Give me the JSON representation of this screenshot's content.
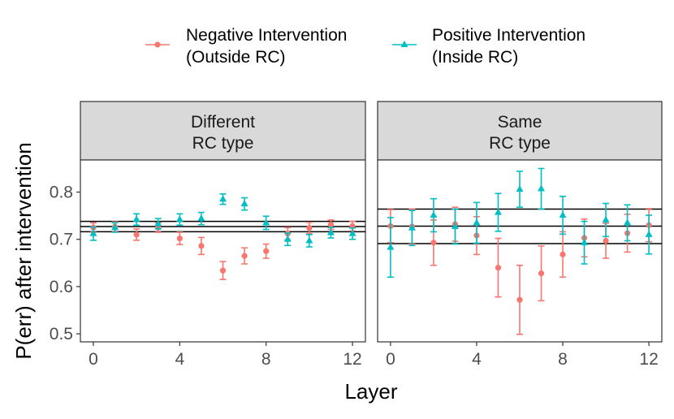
{
  "chart_data": {
    "type": "scatter",
    "ylabel": "P(err) after intervention",
    "xlabel": "Layer",
    "xlim": [
      -0.6,
      12.6
    ],
    "ylim": [
      0.483,
      0.868
    ],
    "xticks": [
      0,
      4,
      8,
      12
    ],
    "yticks": [
      0.5,
      0.6,
      0.7,
      0.8
    ],
    "legend": {
      "position": "top",
      "entries": [
        {
          "key": "neg",
          "line1": "Negative Intervention",
          "line2": "(Outside RC)",
          "marker": "circle",
          "color": "#F8766D"
        },
        {
          "key": "pos",
          "line1": "Positive Intervention",
          "line2": "(Inside RC)",
          "marker": "triangle",
          "color": "#00BFC4"
        }
      ]
    },
    "panels": [
      {
        "strip_line1": "Different",
        "strip_line2": "RC type",
        "hlines": [
          0.738,
          0.727,
          0.716
        ],
        "series": [
          {
            "name": "neg",
            "x": [
              0,
              1,
              2,
              3,
              4,
              5,
              6,
              7,
              8,
              9,
              10,
              11,
              12
            ],
            "y": [
              0.725,
              0.727,
              0.71,
              0.725,
              0.702,
              0.686,
              0.634,
              0.665,
              0.675,
              0.712,
              0.724,
              0.731,
              0.728
            ],
            "lower": [
              0.715,
              0.717,
              0.698,
              0.715,
              0.689,
              0.668,
              0.615,
              0.648,
              0.66,
              0.699,
              0.712,
              0.721,
              0.718
            ],
            "upper": [
              0.735,
              0.737,
              0.722,
              0.735,
              0.715,
              0.704,
              0.653,
              0.682,
              0.69,
              0.725,
              0.736,
              0.741,
              0.738
            ]
          },
          {
            "name": "pos",
            "x": [
              0,
              1,
              2,
              3,
              4,
              5,
              6,
              7,
              8,
              9,
              10,
              11,
              12
            ],
            "y": [
              0.712,
              0.725,
              0.742,
              0.733,
              0.742,
              0.744,
              0.785,
              0.775,
              0.735,
              0.7,
              0.697,
              0.714,
              0.712
            ],
            "lower": [
              0.698,
              0.715,
              0.73,
              0.722,
              0.73,
              0.731,
              0.774,
              0.762,
              0.721,
              0.687,
              0.684,
              0.703,
              0.7
            ],
            "upper": [
              0.726,
              0.735,
              0.754,
              0.744,
              0.754,
              0.757,
              0.796,
              0.788,
              0.749,
              0.713,
              0.71,
              0.725,
              0.724
            ]
          }
        ]
      },
      {
        "strip_line1": "Same",
        "strip_line2": "RC type",
        "hlines": [
          0.764,
          0.728,
          0.691
        ],
        "series": [
          {
            "name": "neg",
            "x": [
              0,
              1,
              2,
              3,
              4,
              5,
              6,
              7,
              8,
              9,
              10,
              11,
              12
            ],
            "y": [
              0.728,
              0.727,
              0.693,
              0.732,
              0.708,
              0.64,
              0.572,
              0.628,
              0.668,
              0.703,
              0.697,
              0.713,
              0.73
            ],
            "lower": [
              0.693,
              0.69,
              0.645,
              0.696,
              0.668,
              0.578,
              0.499,
              0.57,
              0.62,
              0.663,
              0.66,
              0.673,
              0.695
            ],
            "upper": [
              0.763,
              0.764,
              0.741,
              0.768,
              0.748,
              0.702,
              0.645,
              0.686,
              0.716,
              0.743,
              0.734,
              0.753,
              0.765
            ]
          },
          {
            "name": "pos",
            "x": [
              0,
              1,
              2,
              3,
              4,
              5,
              6,
              7,
              8,
              9,
              10,
              11,
              12
            ],
            "y": [
              0.683,
              0.724,
              0.751,
              0.727,
              0.735,
              0.757,
              0.806,
              0.807,
              0.751,
              0.693,
              0.741,
              0.735,
              0.71
            ],
            "lower": [
              0.62,
              0.687,
              0.716,
              0.69,
              0.692,
              0.717,
              0.768,
              0.764,
              0.711,
              0.648,
              0.706,
              0.697,
              0.669
            ],
            "upper": [
              0.746,
              0.761,
              0.786,
              0.764,
              0.778,
              0.797,
              0.844,
              0.85,
              0.791,
              0.738,
              0.776,
              0.773,
              0.751
            ]
          }
        ]
      }
    ]
  }
}
